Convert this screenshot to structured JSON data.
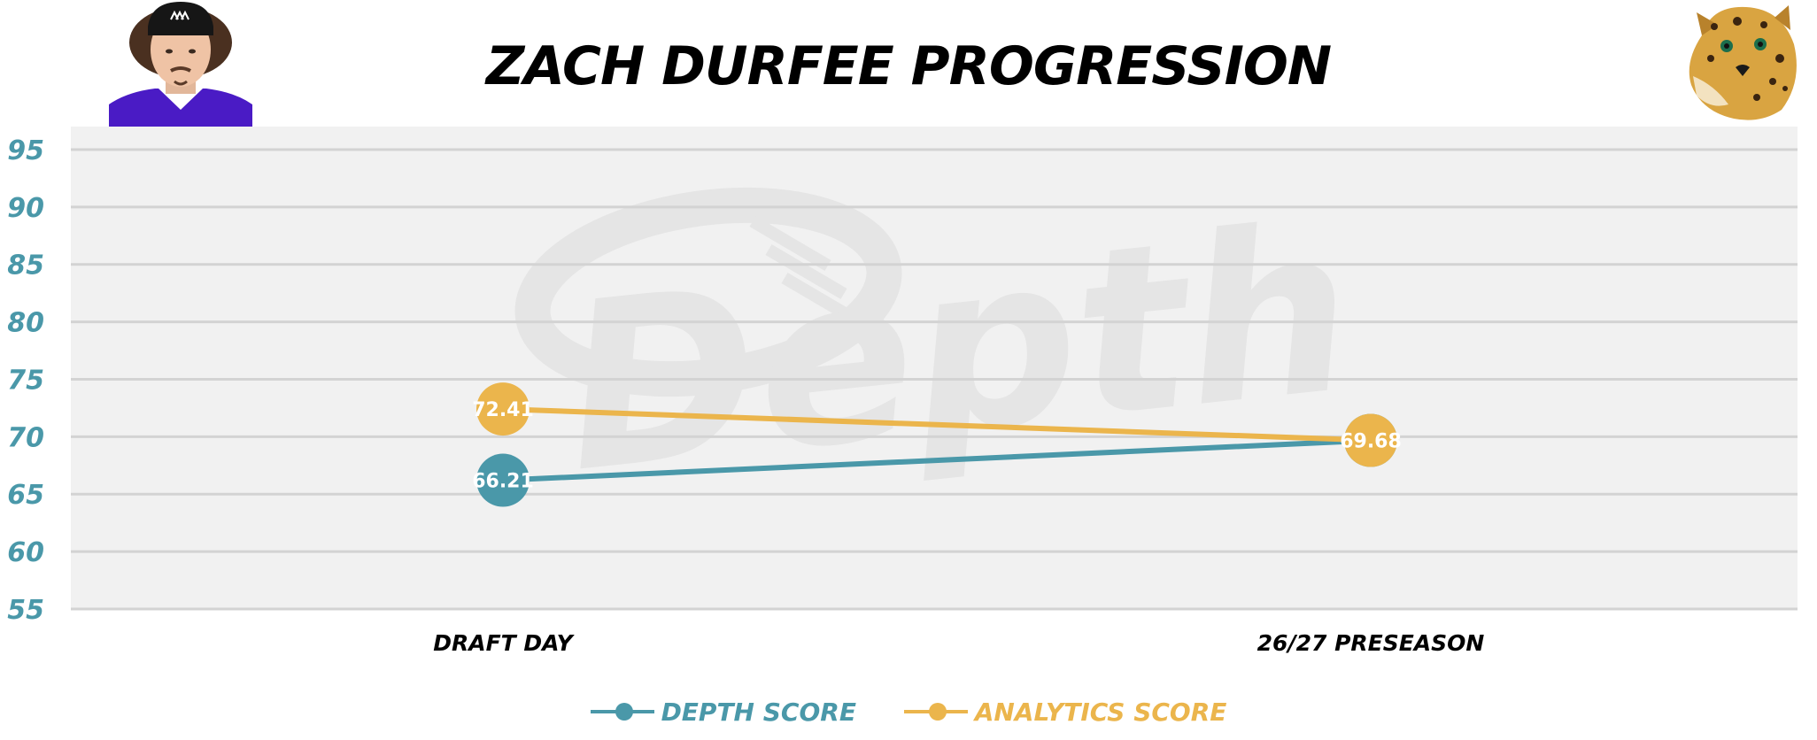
{
  "page": {
    "title": "ZACH DURFEE PROGRESSION"
  },
  "header": {
    "player_photo_icon": "player-headshot",
    "team_logo_icon": "jaguar-head"
  },
  "watermark": {
    "text": "Depth"
  },
  "colors": {
    "depth": "#4a98a9",
    "analytics": "#ebb54c",
    "plot_bg": "#f1f1f1",
    "grid": "#d3d3d3",
    "tick_label": "#4a98a9",
    "category_label": "#000000"
  },
  "chart_data": {
    "type": "line",
    "title": "ZACH DURFEE PROGRESSION",
    "xlabel": "",
    "ylabel": "",
    "categories": [
      "DRAFT DAY",
      "26/27 PRESEASON"
    ],
    "ylim": [
      55,
      97
    ],
    "yticks": [
      55,
      60,
      65,
      70,
      75,
      80,
      85,
      90,
      95
    ],
    "grid": true,
    "legend_position": "bottom-center",
    "series": [
      {
        "name": "DEPTH SCORE",
        "values": [
          66.21,
          69.68
        ],
        "color": "#4a98a9",
        "labels": [
          "66.21",
          "69.68"
        ]
      },
      {
        "name": "ANALYTICS SCORE",
        "values": [
          72.41,
          69.68
        ],
        "color": "#ebb54c",
        "labels": [
          "72.41",
          "69.68"
        ]
      }
    ]
  }
}
